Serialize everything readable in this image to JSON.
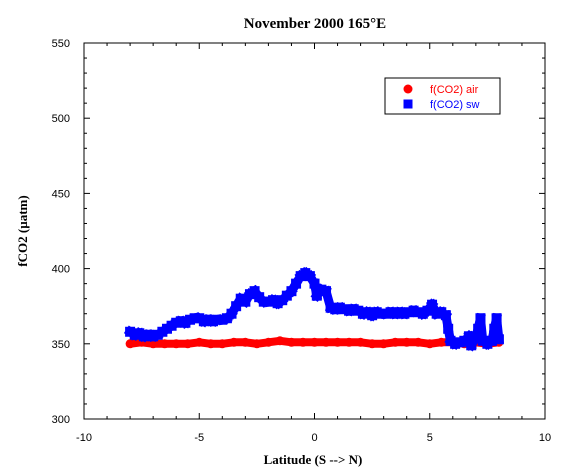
{
  "chart_data": {
    "type": "scatter",
    "title": "November 2000 165°E",
    "xlabel": "Latitude (S --> N)",
    "ylabel": "fCO2 (µatm)",
    "xlim": [
      -10,
      10
    ],
    "ylim": [
      300,
      550
    ],
    "xticks": [
      -10,
      -5,
      0,
      5,
      10
    ],
    "yticks": [
      300,
      350,
      400,
      450,
      500,
      550
    ],
    "grid": false,
    "legend_position": "top-right",
    "series": [
      {
        "name": "f(CO2) air",
        "marker": "circle",
        "color": "#ff0000",
        "points": [
          [
            -8.0,
            350
          ],
          [
            -7.5,
            351
          ],
          [
            -7.0,
            350
          ],
          [
            -6.5,
            350
          ],
          [
            -6.0,
            350
          ],
          [
            -5.5,
            350
          ],
          [
            -5.0,
            351
          ],
          [
            -4.5,
            350
          ],
          [
            -4.0,
            350
          ],
          [
            -3.5,
            351
          ],
          [
            -3.0,
            351
          ],
          [
            -2.5,
            350
          ],
          [
            -2.0,
            351
          ],
          [
            -1.5,
            352
          ],
          [
            -1.0,
            351
          ],
          [
            -0.5,
            351
          ],
          [
            0.0,
            351
          ],
          [
            0.5,
            351
          ],
          [
            1.0,
            351
          ],
          [
            1.5,
            351
          ],
          [
            2.0,
            351
          ],
          [
            2.5,
            350
          ],
          [
            3.0,
            350
          ],
          [
            3.5,
            351
          ],
          [
            4.0,
            351
          ],
          [
            4.5,
            351
          ],
          [
            5.0,
            350
          ],
          [
            5.5,
            351
          ],
          [
            6.0,
            351
          ],
          [
            6.5,
            350
          ],
          [
            7.0,
            351
          ],
          [
            7.5,
            350
          ],
          [
            8.0,
            351
          ]
        ]
      },
      {
        "name": "f(CO2) sw",
        "marker": "square",
        "color": "#0000ff",
        "points": [
          [
            -8.0,
            358
          ],
          [
            -7.8,
            356
          ],
          [
            -7.6,
            357
          ],
          [
            -7.4,
            355
          ],
          [
            -7.2,
            356
          ],
          [
            -7.0,
            355
          ],
          [
            -6.8,
            356
          ],
          [
            -6.6,
            358
          ],
          [
            -6.4,
            360
          ],
          [
            -6.2,
            362
          ],
          [
            -6.0,
            364
          ],
          [
            -5.8,
            365
          ],
          [
            -5.6,
            364
          ],
          [
            -5.4,
            366
          ],
          [
            -5.2,
            367
          ],
          [
            -5.0,
            367
          ],
          [
            -4.8,
            365
          ],
          [
            -4.6,
            366
          ],
          [
            -4.4,
            365
          ],
          [
            -4.2,
            366
          ],
          [
            -4.0,
            366
          ],
          [
            -3.8,
            367
          ],
          [
            -3.6,
            370
          ],
          [
            -3.4,
            375
          ],
          [
            -3.2,
            380
          ],
          [
            -3.0,
            378
          ],
          [
            -2.8,
            383
          ],
          [
            -2.6,
            385
          ],
          [
            -2.4,
            381
          ],
          [
            -2.2,
            378
          ],
          [
            -2.0,
            378
          ],
          [
            -1.8,
            379
          ],
          [
            -1.6,
            377
          ],
          [
            -1.4,
            379
          ],
          [
            -1.2,
            382
          ],
          [
            -1.0,
            385
          ],
          [
            -0.8,
            390
          ],
          [
            -0.6,
            395
          ],
          [
            -0.4,
            397
          ],
          [
            -0.2,
            395
          ],
          [
            0.0,
            390
          ],
          [
            0.1,
            382
          ],
          [
            0.3,
            386
          ],
          [
            0.5,
            385
          ],
          [
            0.7,
            374
          ],
          [
            0.9,
            373
          ],
          [
            1.1,
            374
          ],
          [
            1.3,
            373
          ],
          [
            1.5,
            372
          ],
          [
            1.7,
            373
          ],
          [
            1.9,
            372
          ],
          [
            2.1,
            370
          ],
          [
            2.3,
            371
          ],
          [
            2.5,
            369
          ],
          [
            2.7,
            371
          ],
          [
            2.9,
            370
          ],
          [
            3.1,
            370
          ],
          [
            3.3,
            371
          ],
          [
            3.5,
            370
          ],
          [
            3.7,
            371
          ],
          [
            3.9,
            370
          ],
          [
            4.1,
            371
          ],
          [
            4.3,
            372
          ],
          [
            4.5,
            371
          ],
          [
            4.7,
            370
          ],
          [
            4.9,
            372
          ],
          [
            5.1,
            376
          ],
          [
            5.3,
            370
          ],
          [
            5.5,
            371
          ],
          [
            5.7,
            369
          ],
          [
            5.8,
            360
          ],
          [
            5.9,
            352
          ],
          [
            6.1,
            350
          ],
          [
            6.3,
            351
          ],
          [
            6.5,
            352
          ],
          [
            6.7,
            355
          ],
          [
            6.8,
            349
          ],
          [
            7.0,
            354
          ],
          [
            7.1,
            360
          ],
          [
            7.2,
            367
          ],
          [
            7.3,
            352
          ],
          [
            7.5,
            350
          ],
          [
            7.7,
            352
          ],
          [
            7.8,
            360
          ],
          [
            7.9,
            367
          ],
          [
            8.0,
            353
          ]
        ]
      }
    ]
  }
}
